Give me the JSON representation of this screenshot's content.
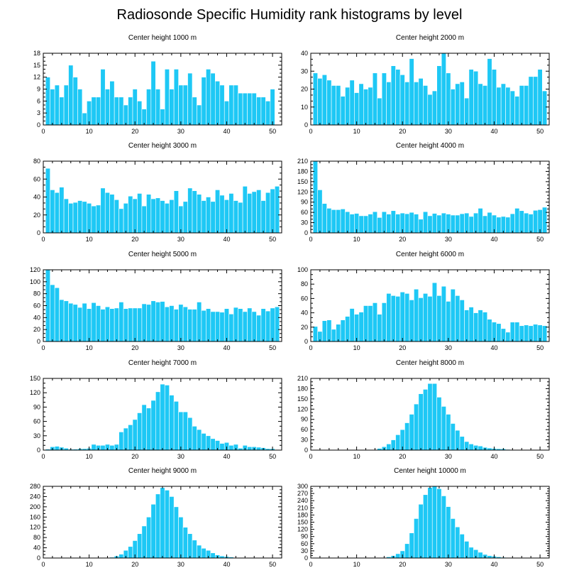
{
  "title": "Radiosonde Specific Humidity rank histograms by level",
  "colors": {
    "bar": "#1ec8f5",
    "bar_edge": "#ffffff",
    "axis": "#000000"
  },
  "chart_data": [
    {
      "type": "bar",
      "title": "Center height 1000 m",
      "xlim": [
        0,
        52
      ],
      "ylim": [
        0,
        18
      ],
      "xticks": [
        0,
        10,
        20,
        30,
        40,
        50
      ],
      "yticks": [
        0,
        3,
        6,
        9,
        12,
        15,
        18
      ],
      "values": [
        12,
        9,
        10,
        7,
        10,
        15,
        12,
        9,
        3,
        6,
        7,
        7,
        14,
        9,
        11,
        7,
        7,
        5,
        7,
        9,
        6,
        4,
        9,
        16,
        9,
        4,
        14,
        9,
        14,
        10,
        10,
        13,
        7,
        5,
        12,
        14,
        13,
        11,
        10,
        6,
        10,
        10,
        8,
        8,
        8,
        8,
        7,
        7,
        6,
        9
      ]
    },
    {
      "type": "bar",
      "title": "Center height 2000 m",
      "xlim": [
        0,
        52
      ],
      "ylim": [
        0,
        40
      ],
      "xticks": [
        0,
        10,
        20,
        30,
        40,
        50
      ],
      "yticks": [
        0,
        10,
        20,
        30,
        40
      ],
      "values": [
        29,
        26,
        28,
        25,
        22,
        22,
        16,
        21,
        25,
        18,
        23,
        20,
        21,
        29,
        15,
        29,
        24,
        33,
        31,
        28,
        24,
        37,
        24,
        26,
        22,
        17,
        19,
        33,
        40,
        29,
        20,
        23,
        24,
        15,
        31,
        30,
        23,
        22,
        37,
        31,
        21,
        23,
        21,
        19,
        16,
        22,
        22,
        27,
        27,
        31,
        19
      ]
    },
    {
      "type": "bar",
      "title": "Center height 3000 m",
      "xlim": [
        0,
        52
      ],
      "ylim": [
        0,
        80
      ],
      "xticks": [
        0,
        10,
        20,
        30,
        40,
        50
      ],
      "yticks": [
        0,
        20,
        40,
        60,
        80
      ],
      "values": [
        72,
        48,
        45,
        51,
        38,
        33,
        34,
        36,
        35,
        33,
        30,
        31,
        50,
        45,
        43,
        37,
        27,
        33,
        41,
        38,
        44,
        30,
        43,
        38,
        39,
        36,
        33,
        37,
        47,
        30,
        35,
        50,
        47,
        43,
        36,
        40,
        35,
        48,
        42,
        37,
        44,
        36,
        34,
        52,
        44,
        46,
        48,
        36,
        45,
        49,
        52
      ]
    },
    {
      "type": "bar",
      "title": "Center height 4000 m",
      "xlim": [
        0,
        52
      ],
      "ylim": [
        0,
        210
      ],
      "xticks": [
        0,
        10,
        20,
        30,
        40,
        50
      ],
      "yticks": [
        0,
        30,
        60,
        90,
        120,
        150,
        180,
        210
      ],
      "values": [
        210,
        126,
        86,
        72,
        68,
        68,
        70,
        62,
        55,
        57,
        50,
        50,
        55,
        62,
        45,
        62,
        55,
        65,
        55,
        58,
        56,
        60,
        55,
        40,
        62,
        50,
        57,
        52,
        58,
        55,
        52,
        52,
        56,
        58,
        48,
        58,
        72,
        50,
        60,
        52,
        46,
        48,
        46,
        56,
        72,
        65,
        58,
        55,
        66,
        68,
        75
      ]
    },
    {
      "type": "bar",
      "title": "Center height 5000 m",
      "xlim": [
        0,
        52
      ],
      "ylim": [
        0,
        120
      ],
      "xticks": [
        0,
        10,
        20,
        30,
        40,
        50
      ],
      "yticks": [
        0,
        20,
        40,
        60,
        80,
        100,
        120
      ],
      "values": [
        120,
        95,
        90,
        70,
        68,
        64,
        62,
        57,
        64,
        55,
        65,
        60,
        54,
        58,
        55,
        56,
        66,
        55,
        56,
        56,
        56,
        63,
        62,
        68,
        66,
        67,
        58,
        60,
        54,
        62,
        58,
        54,
        54,
        66,
        52,
        55,
        50,
        50,
        49,
        55,
        46,
        57,
        55,
        50,
        56,
        50,
        44,
        55,
        51,
        56,
        58
      ]
    },
    {
      "type": "bar",
      "title": "Center height 6000 m",
      "xlim": [
        0,
        52
      ],
      "ylim": [
        0,
        100
      ],
      "xticks": [
        0,
        10,
        20,
        30,
        40,
        50
      ],
      "yticks": [
        0,
        20,
        40,
        60,
        80,
        100
      ],
      "values": [
        21,
        14,
        29,
        30,
        17,
        24,
        30,
        35,
        46,
        38,
        41,
        50,
        50,
        54,
        38,
        54,
        67,
        64,
        63,
        69,
        67,
        58,
        73,
        61,
        67,
        63,
        82,
        64,
        77,
        56,
        73,
        64,
        58,
        44,
        48,
        40,
        44,
        41,
        31,
        27,
        25,
        18,
        13,
        27,
        27,
        22,
        23,
        22,
        24,
        23,
        22
      ]
    },
    {
      "type": "bar",
      "title": "Center height 7000 m",
      "xlim": [
        0,
        52
      ],
      "ylim": [
        0,
        150
      ],
      "xticks": [
        0,
        10,
        20,
        30,
        40,
        50
      ],
      "yticks": [
        0,
        30,
        60,
        90,
        120,
        150
      ],
      "values": [
        2,
        7,
        8,
        6,
        4,
        2,
        2,
        3,
        3,
        4,
        12,
        10,
        10,
        12,
        10,
        12,
        38,
        46,
        53,
        64,
        78,
        95,
        88,
        104,
        122,
        138,
        136,
        115,
        102,
        80,
        80,
        68,
        50,
        43,
        35,
        30,
        24,
        20,
        14,
        16,
        10,
        12,
        4,
        10,
        7,
        7,
        6,
        5,
        3,
        3,
        1
      ]
    },
    {
      "type": "bar",
      "title": "Center height 8000 m",
      "xlim": [
        0,
        52
      ],
      "ylim": [
        0,
        210
      ],
      "xticks": [
        0,
        10,
        20,
        30,
        40,
        50
      ],
      "yticks": [
        0,
        30,
        60,
        90,
        120,
        150,
        180,
        210
      ],
      "values": [
        0,
        0,
        0,
        0,
        0,
        0,
        0,
        0,
        0,
        0,
        0,
        0,
        0,
        0,
        5,
        10,
        18,
        30,
        45,
        60,
        80,
        105,
        135,
        165,
        178,
        195,
        195,
        155,
        128,
        105,
        78,
        58,
        40,
        25,
        18,
        14,
        12,
        8,
        6,
        5,
        4,
        4,
        2,
        1,
        1,
        0,
        0,
        0,
        0,
        0,
        0
      ]
    },
    {
      "type": "bar",
      "title": "Center height 9000 m",
      "xlim": [
        0,
        52
      ],
      "ylim": [
        0,
        280
      ],
      "xticks": [
        0,
        10,
        20,
        30,
        40,
        50
      ],
      "yticks": [
        0,
        40,
        80,
        120,
        160,
        200,
        240,
        280
      ],
      "values": [
        0,
        0,
        0,
        0,
        0,
        0,
        0,
        0,
        0,
        0,
        0,
        0,
        1,
        1,
        3,
        8,
        15,
        30,
        45,
        68,
        95,
        125,
        160,
        210,
        250,
        275,
        265,
        240,
        200,
        160,
        120,
        95,
        70,
        50,
        38,
        30,
        20,
        12,
        8,
        6,
        4,
        2,
        1,
        1,
        0,
        0,
        0,
        0,
        0,
        0,
        0
      ]
    },
    {
      "type": "bar",
      "title": "Center height 10000 m",
      "xlim": [
        0,
        52
      ],
      "ylim": [
        0,
        300
      ],
      "xticks": [
        0,
        10,
        20,
        30,
        40,
        50
      ],
      "yticks": [
        0,
        30,
        60,
        90,
        120,
        150,
        180,
        210,
        240,
        270,
        300
      ],
      "values": [
        0,
        0,
        0,
        0,
        0,
        0,
        0,
        0,
        0,
        0,
        0,
        0,
        0,
        0,
        0,
        2,
        5,
        10,
        18,
        30,
        60,
        105,
        165,
        225,
        265,
        295,
        300,
        290,
        260,
        215,
        165,
        130,
        100,
        70,
        45,
        35,
        24,
        15,
        10,
        8,
        5,
        3,
        2,
        1,
        1,
        0,
        0,
        0,
        0,
        0,
        0
      ]
    }
  ]
}
